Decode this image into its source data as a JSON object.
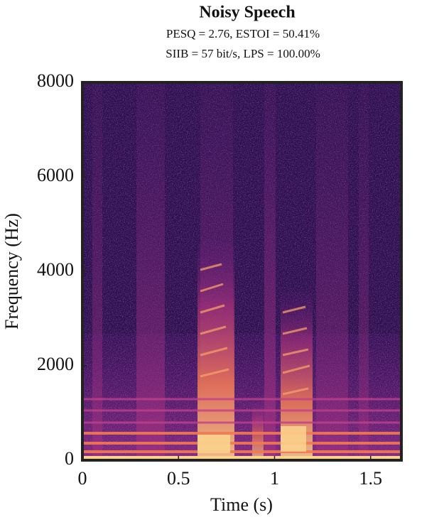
{
  "chart_data": {
    "type": "spectrogram",
    "title": "Noisy Speech",
    "subtitle": [
      "PESQ = 2.76, ESTOI = 50.41%",
      "SIIB = 57 bit/s, LPS = 100.00%"
    ],
    "x_label": "Time (s)",
    "y_label": "Frequency (Hz)",
    "xlim": [
      0,
      1.66
    ],
    "xticks": [
      0,
      0.5,
      1,
      1.5
    ],
    "ylim": [
      0,
      8000
    ],
    "yticks": [
      0,
      2000,
      4000,
      6000,
      8000
    ]
  }
}
